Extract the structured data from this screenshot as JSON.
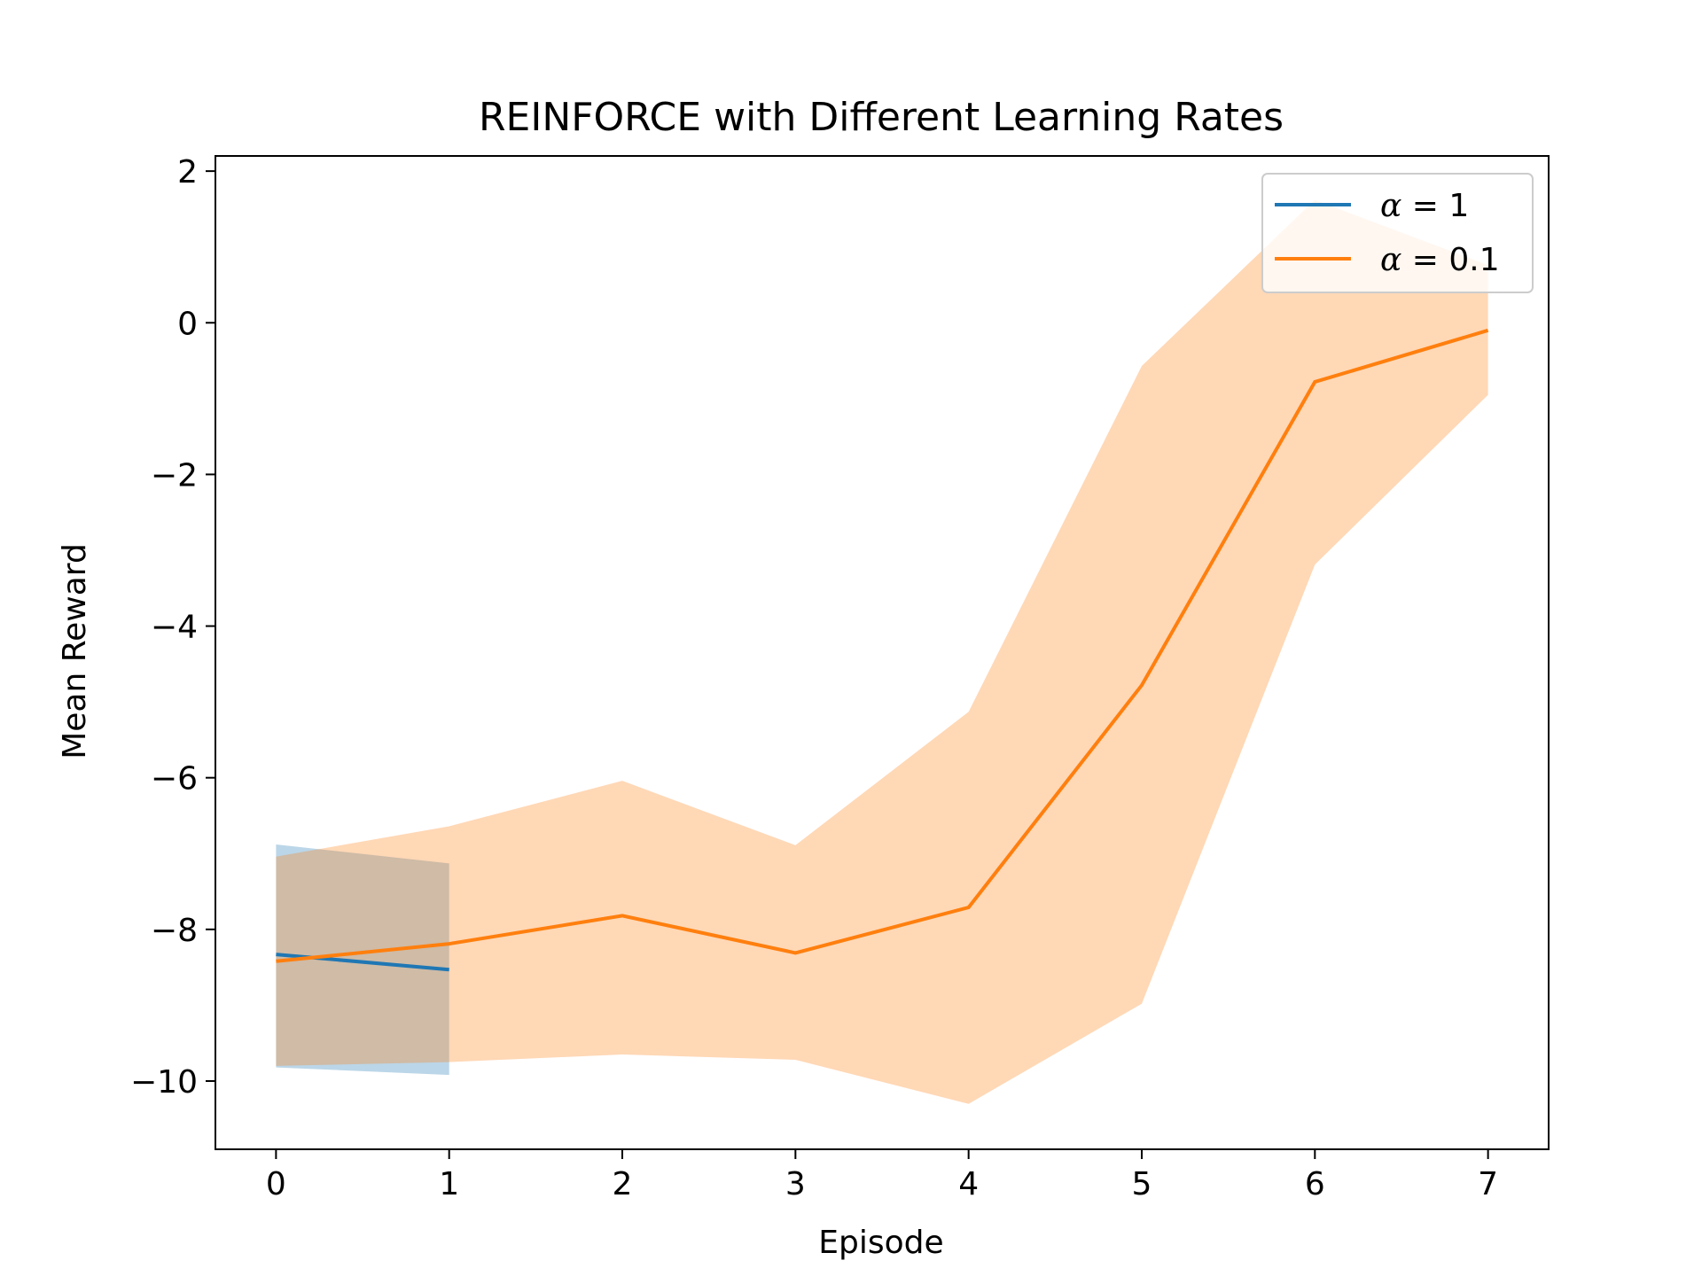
{
  "chart_data": {
    "type": "line",
    "title": "REINFORCE with Different Learning Rates",
    "xlabel": "Episode",
    "ylabel": "Mean Reward",
    "xlim": [
      -0.35,
      7.35
    ],
    "ylim": [
      -10.9,
      2.2
    ],
    "xticks": [
      0,
      1,
      2,
      3,
      4,
      5,
      6,
      7
    ],
    "yticks": [
      2,
      0,
      -2,
      -4,
      -6,
      -8,
      -10
    ],
    "xtick_labels": [
      "0",
      "1",
      "2",
      "3",
      "4",
      "5",
      "6",
      "7"
    ],
    "ytick_labels": [
      "2",
      "0",
      "−2",
      "−4",
      "−6",
      "−8",
      "−10"
    ],
    "grid": false,
    "legend_position": "top-right",
    "series": [
      {
        "name": "α = 1",
        "legend_symbol": "α",
        "legend_value": " = 1",
        "color": "#1f77b4",
        "band_color": "#1f77b4",
        "x": [
          0,
          1
        ],
        "y": [
          -8.33,
          -8.53
        ],
        "lower": [
          -9.82,
          -9.92
        ],
        "upper": [
          -6.88,
          -7.13
        ]
      },
      {
        "name": "α = 0.1",
        "legend_symbol": "α",
        "legend_value": " = 0.1",
        "color": "#ff7f0e",
        "band_color": "#ff7f0e",
        "x": [
          0,
          1,
          2,
          3,
          4,
          5,
          6,
          7
        ],
        "y": [
          -8.42,
          -8.19,
          -7.82,
          -8.31,
          -7.71,
          -4.78,
          -0.78,
          -0.1
        ],
        "lower": [
          -9.8,
          -9.75,
          -9.65,
          -9.72,
          -10.3,
          -8.98,
          -3.19,
          -0.95
        ],
        "upper": [
          -7.04,
          -6.64,
          -6.04,
          -6.89,
          -5.13,
          -0.57,
          1.62,
          0.76
        ]
      }
    ]
  }
}
